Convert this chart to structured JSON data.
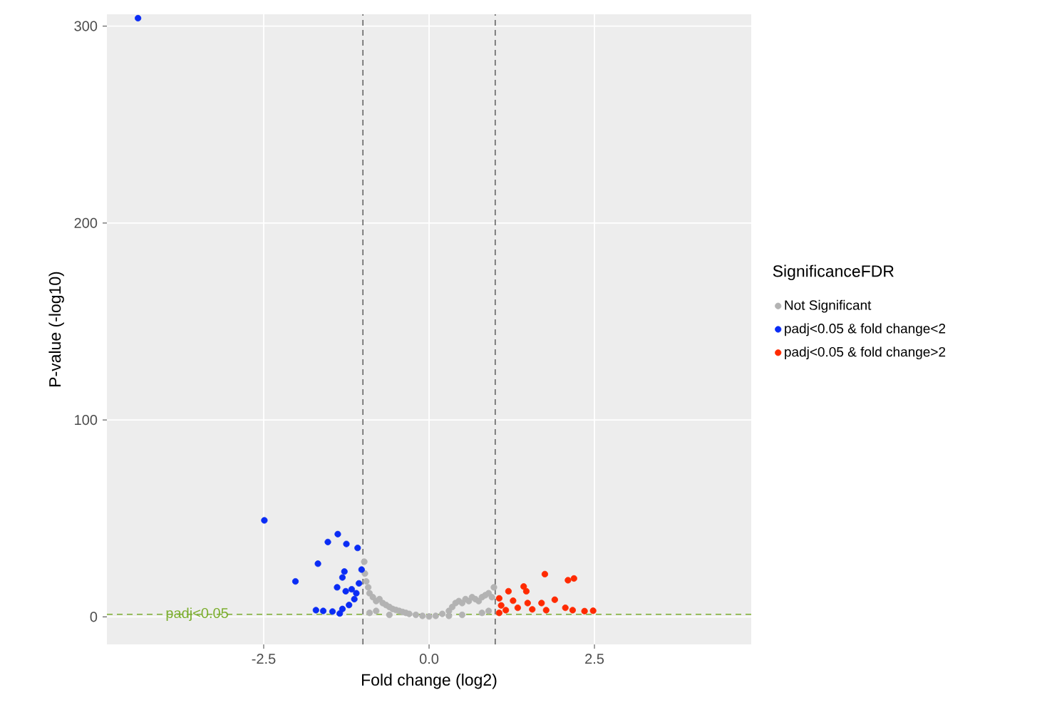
{
  "chart_data": {
    "type": "scatter",
    "xlabel": "Fold change (log2)",
    "ylabel": "P-value (-log10)",
    "legend_title": "SignificanceFDR",
    "xlim": [
      -4.87,
      4.87
    ],
    "ylim": [
      -14,
      306
    ],
    "xticks": [
      -2.5,
      {
        "value": 0,
        "label": "0.0"
      },
      2.5
    ],
    "yticks": [
      0,
      100,
      200,
      300
    ],
    "grid": true,
    "legend": "right",
    "ref_lines": [
      {
        "axis": "x",
        "value": -1,
        "color": "#666666",
        "line_style": "dashed"
      },
      {
        "axis": "x",
        "value": 1,
        "color": "#666666",
        "line_style": "dashed"
      },
      {
        "axis": "y",
        "value": 1.3,
        "label": "padj<0.05",
        "color": "#7cae2f",
        "line_style": "dashed"
      }
    ],
    "series": [
      {
        "name": "Not Significant",
        "color": "#b3b3b3",
        "x": [
          -0.98,
          -0.97,
          -0.95,
          -0.92,
          -0.9,
          -0.85,
          -0.8,
          -0.75,
          -0.7,
          -0.65,
          -0.6,
          -0.55,
          -0.5,
          -0.45,
          -0.4,
          -0.35,
          -0.3,
          -0.2,
          -0.1,
          0,
          0.1,
          0.2,
          0.3,
          0.35,
          0.4,
          0.45,
          0.5,
          0.55,
          0.6,
          0.65,
          0.7,
          0.75,
          0.8,
          0.85,
          0.9,
          0.95,
          0.98,
          -0.9,
          -0.6,
          0.5,
          0.8,
          -0.8,
          0.3,
          0.9
        ],
        "values": [
          28,
          22,
          18,
          15,
          12,
          10,
          8,
          9,
          7,
          6,
          5,
          4,
          3.5,
          3,
          2.5,
          2,
          1.5,
          1,
          0.5,
          0.2,
          0.5,
          1.5,
          3,
          5,
          7,
          8,
          7,
          9,
          8,
          10,
          9,
          8,
          10,
          11,
          12,
          10,
          15,
          2,
          1,
          1,
          2,
          3,
          0.5,
          3
        ]
      },
      {
        "name": "padj<0.05 & fold change<2",
        "color": "#0a2cf5",
        "x": [
          -4.4,
          -2.49,
          -1.38,
          -1.53,
          -1.25,
          -1.08,
          -1.68,
          -1.02,
          -1.28,
          -2.02,
          -1.31,
          -1.39,
          -1.06,
          -1.17,
          -1.1,
          -1.26,
          -1.13,
          -1.21,
          -1.31,
          -1.71,
          -1.6,
          -1.46,
          -1.35
        ],
        "values": [
          304,
          49,
          42,
          38,
          37,
          35,
          27,
          24,
          23,
          18,
          20,
          15,
          17,
          14,
          12,
          13,
          9,
          6,
          4,
          3.4,
          3,
          2.7,
          1.7
        ]
      },
      {
        "name": "padj<0.05 & fold change>2",
        "color": "#ff2a00",
        "x": [
          1.75,
          2.1,
          2.19,
          1.43,
          1.47,
          1.2,
          1.06,
          1.27,
          1.49,
          1.7,
          1.9,
          2.06,
          2.35,
          2.48,
          1.09,
          1.34,
          1.56,
          1.77,
          2.17,
          1.16,
          1.06
        ],
        "values": [
          21.7,
          18.6,
          19.5,
          15.4,
          13,
          13,
          9.4,
          8.2,
          7,
          7,
          8.7,
          4.6,
          2.9,
          3.1,
          5.8,
          4.6,
          3.8,
          3.4,
          3.4,
          3.4,
          2
        ]
      }
    ]
  }
}
